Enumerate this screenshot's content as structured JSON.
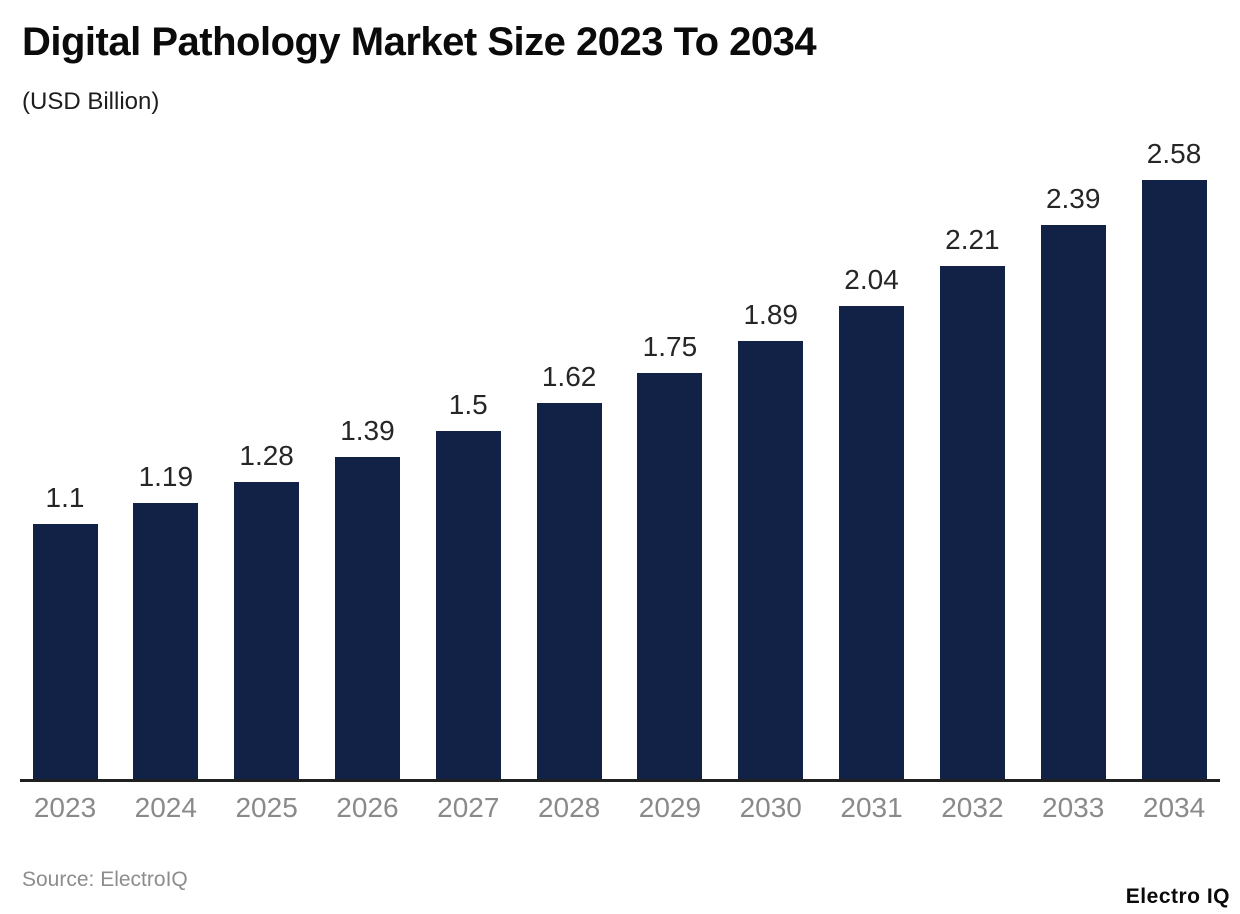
{
  "header": {
    "title": "Digital Pathology Market Size 2023 To 2034",
    "subtitle": "(USD Billion)"
  },
  "footer": {
    "source": "Source: ElectroIQ",
    "brand": "Electro IQ"
  },
  "chart_data": {
    "type": "bar",
    "title": "Digital Pathology Market Size 2023 To 2034",
    "subtitle": "(USD Billion)",
    "xlabel": "",
    "ylabel": "USD Billion",
    "categories": [
      "2023",
      "2024",
      "2025",
      "2026",
      "2027",
      "2028",
      "2029",
      "2030",
      "2031",
      "2032",
      "2033",
      "2034"
    ],
    "values": [
      1.1,
      1.19,
      1.28,
      1.39,
      1.5,
      1.62,
      1.75,
      1.89,
      2.04,
      2.21,
      2.39,
      2.58
    ],
    "ylim": [
      0,
      2.75
    ],
    "grid": false,
    "legend": "none",
    "value_labels_shown": true,
    "colors": {
      "bar": "#122247",
      "value_label": "#262626",
      "axis_label": "#8a8a8a",
      "axis_line": "#202020",
      "background": "#ffffff"
    },
    "source": "Source: ElectroIQ"
  }
}
